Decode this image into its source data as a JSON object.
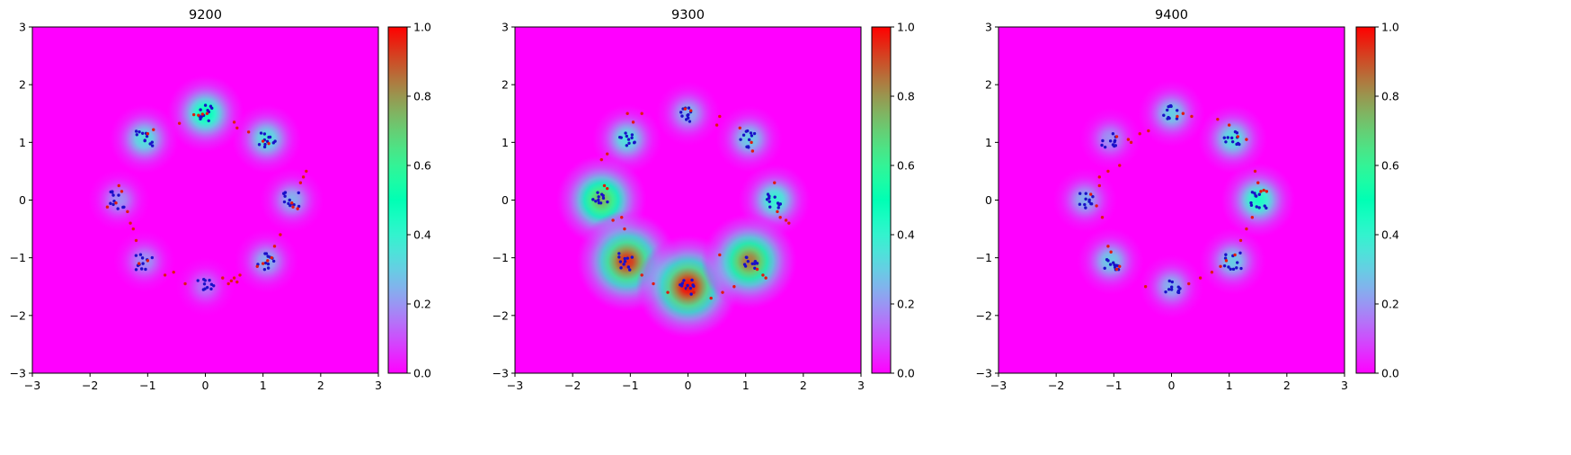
{
  "chart_data": [
    {
      "type": "heatmap",
      "title": "9200",
      "xlim": [
        -3,
        3
      ],
      "ylim": [
        -3,
        3
      ],
      "xticks": [
        "−3",
        "−2",
        "−1",
        "0",
        "1",
        "2",
        "3"
      ],
      "yticks": [
        "−3",
        "−2",
        "−1",
        "0",
        "1",
        "2",
        "3"
      ],
      "colorbar": {
        "range": [
          0,
          1
        ],
        "ticks": [
          "0.0",
          "0.2",
          "0.4",
          "0.6",
          "0.8",
          "1.0"
        ],
        "colormap": "rainbow"
      },
      "modes": [
        {
          "x": 1.5,
          "y": 0.0,
          "value": 0.25
        },
        {
          "x": 1.06,
          "y": 1.06,
          "value": 0.35
        },
        {
          "x": 0.0,
          "y": 1.5,
          "value": 0.5
        },
        {
          "x": -1.06,
          "y": 1.06,
          "value": 0.35
        },
        {
          "x": -1.5,
          "y": 0.0,
          "value": 0.2
        },
        {
          "x": -1.06,
          "y": -1.06,
          "value": 0.2
        },
        {
          "x": 0.0,
          "y": -1.5,
          "value": 0.15
        },
        {
          "x": 1.06,
          "y": -1.06,
          "value": 0.25
        }
      ],
      "generated_points": [
        [
          -0.2,
          1.48
        ],
        [
          -0.12,
          1.47
        ],
        [
          -0.05,
          1.49
        ],
        [
          0.03,
          1.5
        ],
        [
          1.0,
          1.02
        ],
        [
          1.1,
          0.98
        ],
        [
          1.5,
          -0.05
        ],
        [
          1.52,
          -0.12
        ],
        [
          1.6,
          -0.15
        ],
        [
          1.65,
          0.3
        ],
        [
          1.7,
          0.4
        ],
        [
          1.75,
          0.5
        ],
        [
          1.3,
          -0.6
        ],
        [
          1.2,
          -0.8
        ],
        [
          1.15,
          -1.0
        ],
        [
          1.08,
          -1.05
        ],
        [
          1.0,
          -1.1
        ],
        [
          0.9,
          -1.15
        ],
        [
          0.6,
          -1.3
        ],
        [
          0.5,
          -1.35
        ],
        [
          0.45,
          -1.4
        ],
        [
          0.4,
          -1.45
        ],
        [
          0.55,
          -1.42
        ],
        [
          0.3,
          -1.35
        ],
        [
          -0.35,
          -1.45
        ],
        [
          -0.55,
          -1.25
        ],
        [
          -0.7,
          -1.3
        ],
        [
          -1.0,
          -1.05
        ],
        [
          -1.15,
          -1.1
        ],
        [
          -1.2,
          -0.7
        ],
        [
          -1.25,
          -0.5
        ],
        [
          -1.3,
          -0.4
        ],
        [
          -1.35,
          -0.2
        ],
        [
          -1.45,
          0.15
        ],
        [
          -1.5,
          0.25
        ],
        [
          -1.55,
          -0.05
        ],
        [
          -1.7,
          -0.12
        ],
        [
          -1.0,
          1.15
        ],
        [
          -0.9,
          1.22
        ],
        [
          0.5,
          1.35
        ],
        [
          0.55,
          1.25
        ],
        [
          0.75,
          1.18
        ],
        [
          -0.45,
          1.33
        ]
      ]
    },
    {
      "type": "heatmap",
      "title": "9300",
      "xlim": [
        -3,
        3
      ],
      "ylim": [
        -3,
        3
      ],
      "xticks": [
        "−3",
        "−2",
        "−1",
        "0",
        "1",
        "2",
        "3"
      ],
      "yticks": [
        "−3",
        "−2",
        "−1",
        "0",
        "1",
        "2",
        "3"
      ],
      "colorbar": {
        "range": [
          0,
          1
        ],
        "ticks": [
          "0.0",
          "0.2",
          "0.4",
          "0.6",
          "0.8",
          "1.0"
        ],
        "colormap": "rainbow"
      },
      "modes": [
        {
          "x": 1.5,
          "y": 0.0,
          "value": 0.4
        },
        {
          "x": 1.06,
          "y": 1.06,
          "value": 0.3
        },
        {
          "x": 0.0,
          "y": 1.5,
          "value": 0.25
        },
        {
          "x": -1.06,
          "y": 1.06,
          "value": 0.35
        },
        {
          "x": -1.5,
          "y": 0.0,
          "value": 0.75
        },
        {
          "x": -1.06,
          "y": -1.06,
          "value": 0.95
        },
        {
          "x": 0.0,
          "y": -1.5,
          "value": 1.0
        },
        {
          "x": 1.06,
          "y": -1.06,
          "value": 0.85
        }
      ],
      "generated_points": [
        [
          -0.05,
          1.58
        ],
        [
          0.05,
          1.55
        ],
        [
          0.55,
          1.45
        ],
        [
          0.9,
          1.25
        ],
        [
          1.1,
          1.0
        ],
        [
          1.12,
          0.85
        ],
        [
          1.5,
          0.3
        ],
        [
          1.55,
          -0.2
        ],
        [
          1.6,
          -0.3
        ],
        [
          1.7,
          -0.35
        ],
        [
          1.75,
          -0.4
        ],
        [
          1.2,
          -1.2
        ],
        [
          1.3,
          -1.3
        ],
        [
          1.35,
          -1.35
        ],
        [
          0.8,
          -1.5
        ],
        [
          0.6,
          -1.6
        ],
        [
          0.4,
          -1.7
        ],
        [
          -0.35,
          -1.6
        ],
        [
          -0.6,
          -1.45
        ],
        [
          -0.8,
          -1.3
        ],
        [
          -1.1,
          -0.5
        ],
        [
          -1.15,
          -0.3
        ],
        [
          -1.3,
          -0.35
        ],
        [
          -1.4,
          0.2
        ],
        [
          -1.45,
          0.25
        ],
        [
          -1.5,
          0.7
        ],
        [
          -1.4,
          0.8
        ],
        [
          -0.95,
          1.35
        ],
        [
          -0.8,
          1.5
        ],
        [
          -1.05,
          1.5
        ],
        [
          0.0,
          -1.55
        ],
        [
          0.1,
          -1.6
        ],
        [
          0.55,
          -0.95
        ],
        [
          0.5,
          1.3
        ]
      ]
    },
    {
      "type": "heatmap",
      "title": "9400",
      "xlim": [
        -3,
        3
      ],
      "ylim": [
        -3,
        3
      ],
      "xticks": [
        "−3",
        "−2",
        "−1",
        "0",
        "1",
        "2",
        "3"
      ],
      "yticks": [
        "−3",
        "−2",
        "−1",
        "0",
        "1",
        "2",
        "3"
      ],
      "colorbar": {
        "range": [
          0,
          1
        ],
        "ticks": [
          "0.0",
          "0.2",
          "0.4",
          "0.6",
          "0.8",
          "1.0"
        ],
        "colormap": "rainbow"
      },
      "modes": [
        {
          "x": 1.5,
          "y": 0.0,
          "value": 0.45
        },
        {
          "x": 1.06,
          "y": 1.06,
          "value": 0.35
        },
        {
          "x": 0.0,
          "y": 1.5,
          "value": 0.3
        },
        {
          "x": -1.06,
          "y": 1.06,
          "value": 0.2
        },
        {
          "x": -1.5,
          "y": 0.0,
          "value": 0.25
        },
        {
          "x": -1.06,
          "y": -1.06,
          "value": 0.3
        },
        {
          "x": 0.0,
          "y": -1.5,
          "value": 0.25
        },
        {
          "x": 1.06,
          "y": -1.06,
          "value": 0.3
        }
      ],
      "generated_points": [
        [
          0.1,
          1.45
        ],
        [
          0.2,
          1.5
        ],
        [
          0.35,
          1.45
        ],
        [
          0.8,
          1.4
        ],
        [
          1.0,
          1.3
        ],
        [
          1.15,
          1.1
        ],
        [
          1.3,
          1.05
        ],
        [
          1.45,
          0.5
        ],
        [
          1.5,
          0.3
        ],
        [
          1.55,
          0.15
        ],
        [
          1.6,
          0.17
        ],
        [
          1.65,
          0.15
        ],
        [
          1.4,
          -0.3
        ],
        [
          1.3,
          -0.5
        ],
        [
          1.2,
          -0.7
        ],
        [
          1.1,
          -0.95
        ],
        [
          0.95,
          -1.05
        ],
        [
          0.85,
          -1.15
        ],
        [
          0.7,
          -1.25
        ],
        [
          0.5,
          -1.35
        ],
        [
          0.3,
          -1.45
        ],
        [
          -0.45,
          -1.5
        ],
        [
          -0.9,
          -1.15
        ],
        [
          -0.95,
          -1.2
        ],
        [
          -1.05,
          -0.9
        ],
        [
          -1.1,
          -0.8
        ],
        [
          -1.2,
          -0.3
        ],
        [
          -1.3,
          -0.1
        ],
        [
          -1.4,
          0.1
        ],
        [
          -1.25,
          0.25
        ],
        [
          -1.1,
          0.5
        ],
        [
          -0.9,
          0.6
        ],
        [
          -0.7,
          1.0
        ],
        [
          -0.75,
          1.05
        ],
        [
          -0.55,
          1.15
        ],
        [
          -0.4,
          1.2
        ],
        [
          -0.95,
          1.1
        ],
        [
          -1.25,
          0.4
        ]
      ]
    }
  ]
}
